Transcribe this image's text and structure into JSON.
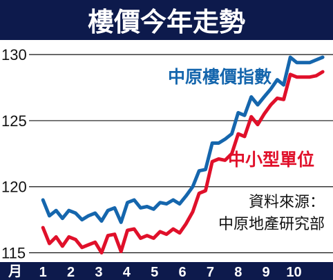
{
  "title": "樓價今年走勢",
  "chart_data": {
    "type": "line",
    "title": "樓價今年走勢",
    "xlabel": "月",
    "ylabel": "",
    "x_ticks": [
      "1",
      "2",
      "3",
      "4",
      "5",
      "6",
      "7",
      "8",
      "9",
      "10"
    ],
    "y_ticks": [
      115,
      120,
      125,
      130
    ],
    "xlim": [
      0.5,
      11.4
    ],
    "ylim": [
      114.4,
      131
    ],
    "grid": "horizontal",
    "x": [
      1.0,
      1.23,
      1.47,
      1.7,
      1.93,
      2.17,
      2.4,
      2.63,
      2.87,
      3.1,
      3.33,
      3.57,
      3.8,
      4.03,
      4.27,
      4.5,
      4.73,
      4.97,
      5.2,
      5.43,
      5.67,
      5.9,
      6.13,
      6.37,
      6.6,
      6.83,
      7.07,
      7.3,
      7.53,
      7.77,
      8.0,
      8.23,
      8.47,
      8.7,
      8.93,
      9.17,
      9.4,
      9.63,
      9.87,
      10.1,
      10.33,
      10.57,
      10.8,
      11.03
    ],
    "series": [
      {
        "name": "中原樓價指數",
        "color": "#1566ad",
        "values": [
          119.0,
          117.8,
          118.2,
          117.6,
          118.2,
          118.0,
          117.5,
          117.8,
          118.0,
          117.4,
          118.2,
          118.4,
          117.3,
          118.8,
          119.0,
          118.4,
          118.5,
          118.3,
          118.8,
          118.7,
          119.0,
          118.7,
          119.3,
          120.0,
          121.2,
          121.3,
          123.3,
          123.3,
          123.6,
          124.0,
          125.6,
          125.4,
          126.8,
          126.2,
          126.8,
          127.4,
          128.1,
          127.7,
          129.8,
          129.4,
          129.4,
          129.4,
          129.6,
          129.8
        ]
      },
      {
        "name": "中小型單位",
        "color": "#e0102a",
        "values": [
          116.9,
          115.7,
          116.2,
          115.5,
          116.2,
          116.0,
          115.4,
          115.6,
          115.8,
          115.0,
          116.3,
          116.4,
          115.1,
          116.7,
          116.8,
          116.1,
          116.3,
          116.1,
          116.6,
          116.4,
          116.8,
          116.5,
          117.2,
          118.1,
          119.5,
          119.7,
          121.9,
          122.1,
          122.0,
          122.5,
          124.0,
          123.8,
          125.3,
          124.7,
          125.5,
          126.2,
          126.7,
          126.6,
          128.5,
          128.3,
          128.3,
          128.3,
          128.4,
          128.7
        ]
      }
    ],
    "annotations": [
      "資料來源：",
      "中原地產研究部"
    ]
  }
}
